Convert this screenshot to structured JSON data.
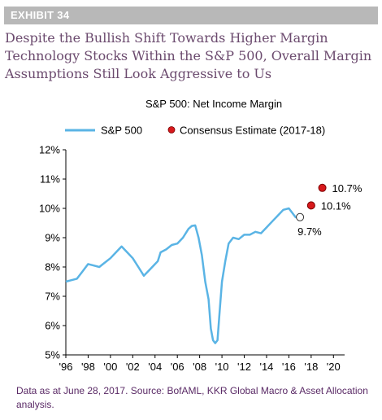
{
  "exhibit_label": "EXHIBIT 34",
  "headline": "Despite the Bullish Shift Towards Higher Margin Technology Stocks Within the S&P 500, Overall Margin Assumptions Still Look Aggressive to Us",
  "source_note": "Data as at June 28, 2017. Source: BofAML, KKR Global Macro & Asset Allocation analysis.",
  "colors": {
    "line": "#5ab4e5",
    "estimate": "#d7191c",
    "headline": "#6b4a6e",
    "source": "#5a2a66",
    "exhibit_bg": "#b8b8b8"
  },
  "chart_data": {
    "type": "line",
    "title": "S&P 500: Net Income Margin",
    "xlim": [
      1996,
      2021
    ],
    "ylim": [
      5,
      12
    ],
    "y_ticks": [
      5,
      6,
      7,
      8,
      9,
      10,
      11,
      12
    ],
    "y_tick_labels": [
      "5%",
      "6%",
      "7%",
      "8%",
      "9%",
      "10%",
      "11%",
      "12%"
    ],
    "x_ticks": [
      1996,
      1998,
      2000,
      2002,
      2004,
      2006,
      2008,
      2010,
      2012,
      2014,
      2016,
      2018,
      2020
    ],
    "x_tick_labels": [
      "'96",
      "'98",
      "'00",
      "'02",
      "'04",
      "'06",
      "'08",
      "'10",
      "'12",
      "'14",
      "'16",
      "'18",
      "'20"
    ],
    "grid": false,
    "legend": "top",
    "series": [
      {
        "name": "S&P 500",
        "x": [
          1996.0,
          1996.5,
          1997.0,
          1997.5,
          1998.0,
          1998.5,
          1999.0,
          1999.5,
          2000.0,
          2000.5,
          2001.0,
          2001.5,
          2002.0,
          2002.5,
          2003.0,
          2003.5,
          2004.0,
          2004.25,
          2004.5,
          2005.0,
          2005.5,
          2006.0,
          2006.5,
          2007.0,
          2007.3,
          2007.6,
          2007.9,
          2008.2,
          2008.5,
          2008.8,
          2009.0,
          2009.2,
          2009.4,
          2009.6,
          2009.8,
          2010.0,
          2010.3,
          2010.6,
          2011.0,
          2011.5,
          2012.0,
          2012.5,
          2013.0,
          2013.5,
          2014.0,
          2014.5,
          2015.0,
          2015.5,
          2016.0,
          2016.3,
          2016.6,
          2017.0
        ],
        "values": [
          7.5,
          7.55,
          7.6,
          7.85,
          8.1,
          8.05,
          8.0,
          8.15,
          8.3,
          8.5,
          8.7,
          8.5,
          8.3,
          8.0,
          7.7,
          7.9,
          8.1,
          8.2,
          8.5,
          8.6,
          8.75,
          8.8,
          9.0,
          9.3,
          9.4,
          9.42,
          9.0,
          8.4,
          7.5,
          6.9,
          5.9,
          5.5,
          5.4,
          5.5,
          6.5,
          7.5,
          8.2,
          8.8,
          9.0,
          8.95,
          9.1,
          9.1,
          9.2,
          9.15,
          9.35,
          9.55,
          9.75,
          9.95,
          10.0,
          9.85,
          9.7,
          9.65
        ]
      },
      {
        "name": "Consensus Estimate (2017-18)",
        "points": [
          {
            "x": 2017.0,
            "y": 9.7,
            "label": "9.7%",
            "style": "open"
          },
          {
            "x": 2018.0,
            "y": 10.1,
            "label": "10.1%",
            "style": "filled"
          },
          {
            "x": 2019.0,
            "y": 10.7,
            "label": "10.7%",
            "style": "filled"
          }
        ]
      }
    ]
  }
}
